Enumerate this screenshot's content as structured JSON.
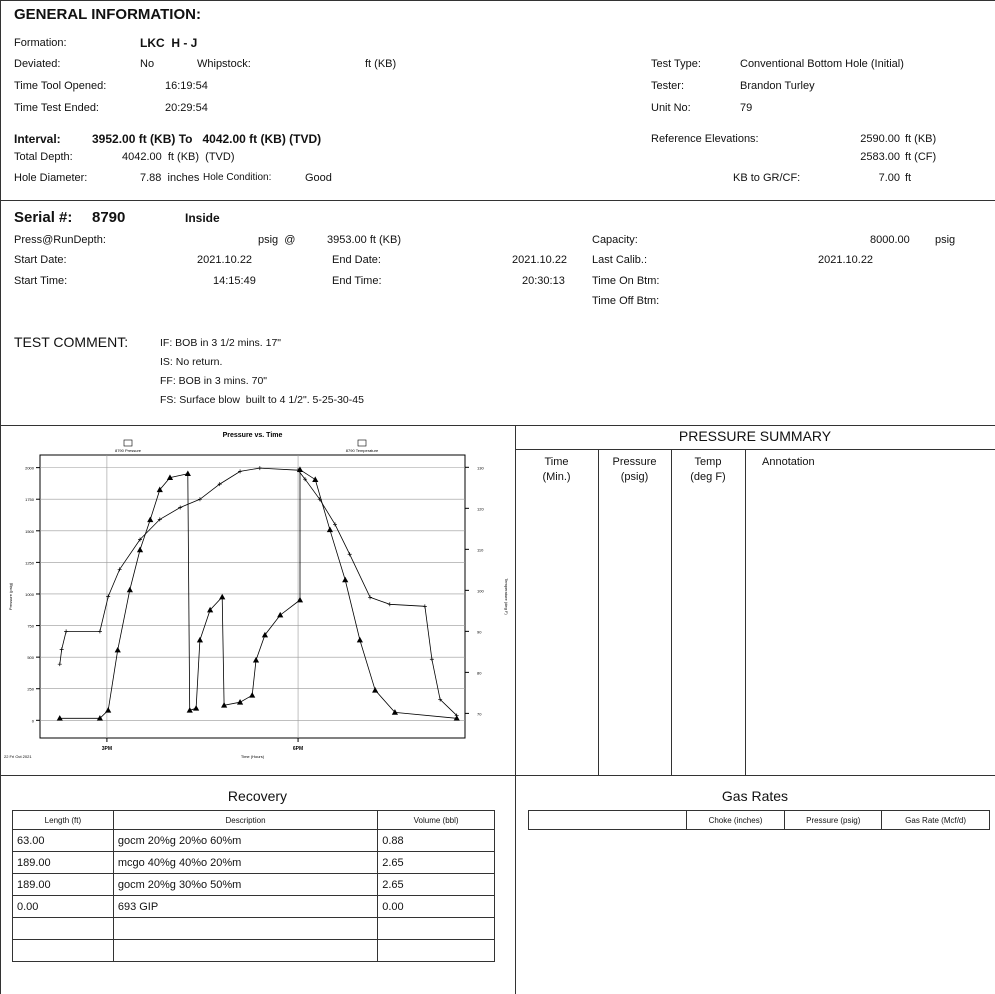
{
  "general": {
    "title": "GENERAL INFORMATION:",
    "formation_label": "Formation:",
    "formation": "LKC  H - J",
    "deviated_label": "Deviated:",
    "deviated": "No",
    "whipstock_label": "Whipstock:",
    "whipstock_unit": "ft (KB)",
    "time_opened_label": "Time Tool Opened:",
    "time_opened": "16:19:54",
    "time_ended_label": "Time Test Ended:",
    "time_ended": "20:29:54",
    "interval_label": "Interval:",
    "interval": "3952.00 ft (KB) To   4042.00 ft (KB) (TVD)",
    "total_depth_label": "Total Depth:",
    "total_depth": "4042.00  ft (KB)  (TVD)",
    "hole_diameter_label": "Hole Diameter:",
    "hole_diameter": "7.88  inches",
    "hole_condition_label": "Hole Condition:",
    "hole_condition": "Good",
    "test_type_label": "Test Type:",
    "test_type": "Conventional Bottom Hole (Initial)",
    "tester_label": "Tester:",
    "tester": "Brandon Turley",
    "unit_label": "Unit No:",
    "unit": "79",
    "ref_elev_label": "Reference Elevations:",
    "ref_kb": "2590.00",
    "ref_kb_unit": "ft (KB)",
    "ref_cf": "2583.00",
    "ref_cf_unit": "ft (CF)",
    "kb_gr_label": "KB to GR/CF:",
    "kb_gr": "7.00",
    "kb_gr_unit": "ft"
  },
  "serial": {
    "label": "Serial #:",
    "number": "8790",
    "position": "Inside",
    "press_label": "Press@RunDepth:",
    "press_unit": "psig  @",
    "run_depth": "3953.00 ft (KB)",
    "start_date_label": "Start Date:",
    "start_date": "2021.10.22",
    "end_date_label": "End Date:",
    "end_date": "2021.10.22",
    "start_time_label": "Start Time:",
    "start_time": "14:15:49",
    "end_time_label": "End Time:",
    "end_time": "20:30:13",
    "capacity_label": "Capacity:",
    "capacity": "8000.00",
    "capacity_unit": "psig",
    "last_calib_label": "Last Calib.:",
    "last_calib": "2021.10.22",
    "time_on_label": "Time On Btm:",
    "time_off_label": "Time Off Btm:"
  },
  "comment": {
    "label": "TEST COMMENT:",
    "lines": [
      "IF: BOB in 3 1/2 mins. 17\"",
      "IS: No return.",
      "FF: BOB in 3 mins. 70\"",
      "FS: Surface blow  built to 4 1/2\". 5-25-30-45"
    ]
  },
  "chart_data": {
    "type": "line",
    "title": "Pressure vs. Time",
    "x_label": "Time (Hours)",
    "y_label": "Pressure (psig)",
    "y2_label": "Temperature (deg F)",
    "date_label": "22 Fri Oct 2021",
    "xlim": [
      13.95,
      20.62
    ],
    "xticks": [
      {
        "value": 15,
        "label": "3PM"
      },
      {
        "value": 18,
        "label": "6PM"
      }
    ],
    "ylim": [
      -140,
      2100
    ],
    "yticks": [
      0,
      250,
      500,
      750,
      1000,
      1250,
      1500,
      1750,
      2000
    ],
    "y2lim": [
      64,
      133
    ],
    "y2ticks": [
      70,
      80,
      90,
      100,
      110,
      120,
      130
    ],
    "grid": true,
    "series": [
      {
        "name": "8790 Pressure",
        "color": "#000000",
        "marker": "triangle",
        "x": [
          14.26,
          14.89,
          15.02,
          15.17,
          15.36,
          15.52,
          15.68,
          15.83,
          15.99,
          16.27,
          16.3,
          16.4,
          16.46,
          16.62,
          16.81,
          16.84,
          17.09,
          17.28,
          17.34,
          17.48,
          17.72,
          18.03,
          18.03,
          18.27,
          18.5,
          18.74,
          18.97,
          19.21,
          19.52,
          20.49
        ],
        "values": [
          16,
          16,
          79,
          556,
          1032,
          1349,
          1587,
          1825,
          1921,
          1952,
          79,
          95,
          635,
          873,
          976,
          119,
          143,
          198,
          476,
          675,
          833,
          952,
          1984,
          1905,
          1508,
          1111,
          635,
          238,
          63,
          16
        ]
      },
      {
        "name": "8790 Temperature",
        "color": "#000000",
        "marker": "plus",
        "axis": "y2",
        "x": [
          14.26,
          14.29,
          14.36,
          14.89,
          15.02,
          15.2,
          15.52,
          15.83,
          16.15,
          16.46,
          16.77,
          17.09,
          17.4,
          18.0,
          18.11,
          18.34,
          18.58,
          18.81,
          19.13,
          19.44,
          19.99,
          20.1,
          20.23,
          20.49
        ],
        "values": [
          82.0,
          85.6,
          90.0,
          90.0,
          98.5,
          105.1,
          112.4,
          117.3,
          120.2,
          122.2,
          125.9,
          129.0,
          129.8,
          129.3,
          127.1,
          122.2,
          116.1,
          108.8,
          98.3,
          96.6,
          96.1,
          83.2,
          73.4,
          69.5
        ]
      }
    ]
  },
  "pressure_summary": {
    "title": "PRESSURE SUMMARY",
    "headers": [
      [
        "Time",
        "(Min.)"
      ],
      [
        "Pressure",
        "(psig)"
      ],
      [
        "Temp",
        "(deg F)"
      ],
      [
        "Annotation"
      ]
    ]
  },
  "recovery": {
    "title": "Recovery",
    "headers": [
      "Length (ft)",
      "Description",
      "Volume (bbl)"
    ],
    "rows": [
      [
        "63.00",
        "gocm 20%g 20%o 60%m",
        "0.88"
      ],
      [
        "189.00",
        "mcgo 40%g 40%o 20%m",
        "2.65"
      ],
      [
        "189.00",
        "gocm 20%g 30%o 50%m",
        "2.65"
      ],
      [
        "0.00",
        "693 GIP",
        "0.00"
      ]
    ]
  },
  "gas_rates": {
    "title": "Gas Rates",
    "headers": [
      "Choke (inches)",
      "Pressure (psig)",
      "Gas Rate (Mcf/d)"
    ]
  }
}
